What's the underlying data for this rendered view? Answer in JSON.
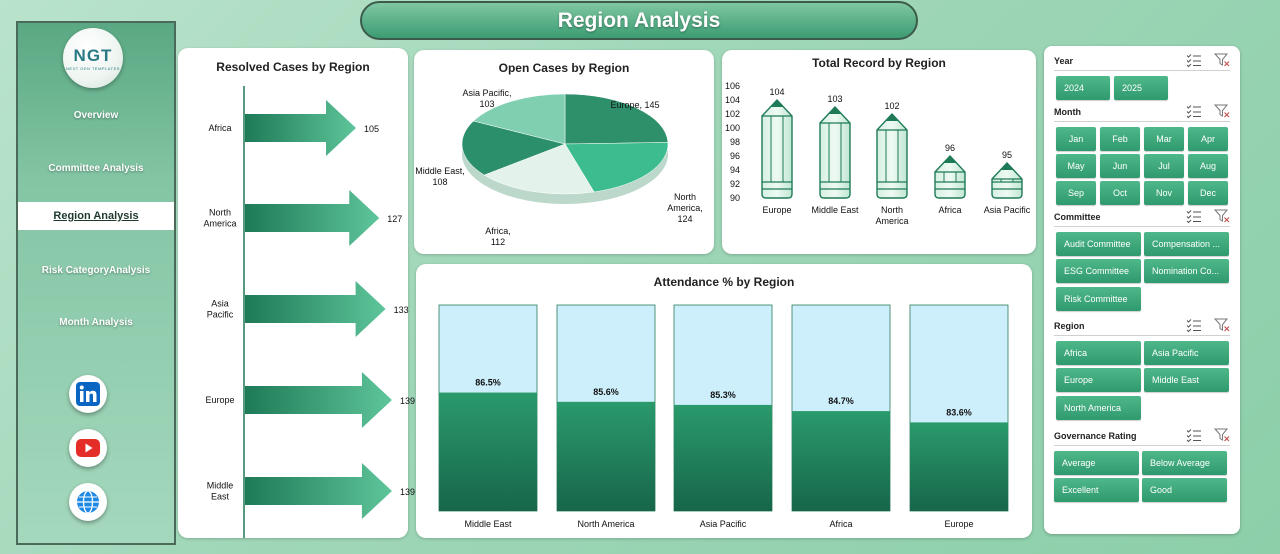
{
  "header": {
    "title": "Region Analysis"
  },
  "sidebar": {
    "logo_text": "NGT",
    "logo_sub": "NEXT GEN TEMPLATES",
    "nav": [
      {
        "label": "Overview"
      },
      {
        "label": "Committee Analysis"
      },
      {
        "label": "Region Analysis"
      },
      {
        "label": "Risk CategoryAnalysis"
      },
      {
        "label": "Month Analysis"
      }
    ],
    "active_nav": "Region Analysis",
    "social_icons": [
      "linkedin-icon",
      "youtube-icon",
      "globe-icon"
    ]
  },
  "colors": {
    "accent_green": "#2f9a6e",
    "dark_green": "#1e7a57",
    "light_blue": "#cdeefb"
  },
  "resolved_chart": {
    "title": "Resolved Cases by Region",
    "chart_data": {
      "type": "bar",
      "categories": [
        "Africa",
        "North America",
        "Asia Pacific",
        "Europe",
        "Middle East"
      ],
      "values": [
        105,
        127,
        133,
        139,
        139
      ],
      "labels": [
        "105",
        "127",
        "133",
        "139",
        "139"
      ]
    }
  },
  "open_chart": {
    "title": "Open Cases by Region",
    "chart_data": {
      "type": "pie",
      "categories": [
        "Europe",
        "North America",
        "Africa",
        "Middle East",
        "Asia Pacific"
      ],
      "values": [
        145,
        124,
        112,
        108,
        103
      ],
      "labels": [
        "Europe, 145",
        "North America, 124",
        "Africa, 112",
        "Middle East, 108",
        "Asia Pacific, 103"
      ]
    }
  },
  "total_chart": {
    "title": "Total Record by Region",
    "chart_data": {
      "type": "bar",
      "categories": [
        "Europe",
        "Middle East",
        "North America",
        "Africa",
        "Asia Pacific"
      ],
      "values": [
        104,
        103,
        102,
        96,
        95
      ],
      "ylim": [
        90,
        106
      ],
      "yticks": [
        "90",
        "92",
        "94",
        "96",
        "98",
        "100",
        "102",
        "104",
        "106"
      ]
    }
  },
  "attendance_chart": {
    "title": "Attendance % by Region",
    "chart_data": {
      "type": "bar",
      "categories": [
        "Middle East",
        "North America",
        "Asia Pacific",
        "Africa",
        "Europe"
      ],
      "values": [
        86.5,
        85.6,
        85.3,
        84.7,
        83.6
      ],
      "labels": [
        "86.5%",
        "85.6%",
        "85.3%",
        "84.7%",
        "83.6%"
      ]
    }
  },
  "slicers": {
    "year": {
      "title": "Year",
      "items": [
        "2024",
        "2025"
      ]
    },
    "month": {
      "title": "Month",
      "items": [
        "Jan",
        "Feb",
        "Mar",
        "Apr",
        "May",
        "Jun",
        "Jul",
        "Aug",
        "Sep",
        "Oct",
        "Nov",
        "Dec"
      ]
    },
    "committee": {
      "title": "Committee",
      "items": [
        "Audit Committee",
        "Compensation ...",
        "ESG Committee",
        "Nomination Co...",
        "Risk Committee"
      ]
    },
    "region": {
      "title": "Region",
      "items": [
        "Africa",
        "Asia Pacific",
        "Europe",
        "Middle East",
        "North America"
      ]
    },
    "governance": {
      "title": "Governance Rating",
      "items": [
        "Average",
        "Below Average",
        "Excellent",
        "Good"
      ]
    }
  }
}
